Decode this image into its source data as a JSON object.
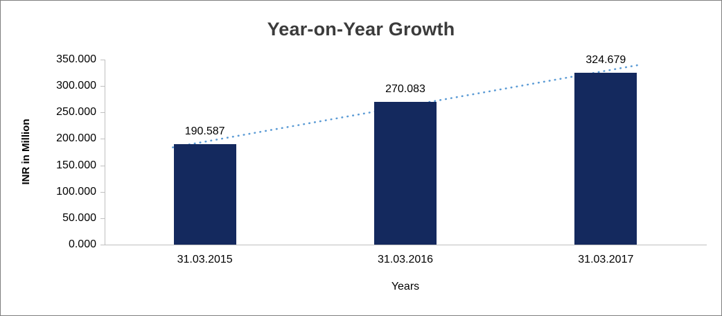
{
  "chart_data": {
    "type": "bar",
    "title": "Year-on-Year Growth",
    "xlabel": "Years",
    "ylabel": "INR in Million",
    "categories": [
      "31.03.2015",
      "31.03.2016",
      "31.03.2017"
    ],
    "values": [
      190.587,
      270.083,
      324.679
    ],
    "value_labels": [
      "190.587",
      "270.083",
      "324.679"
    ],
    "ylim": [
      0,
      350
    ],
    "ytick_step": 50,
    "ytick_labels": [
      "0.000",
      "50.000",
      "100.000",
      "150.000",
      "200.000",
      "250.000",
      "300.000",
      "350.000"
    ],
    "grid": false,
    "legend": "none",
    "bar_color": "#14295e",
    "trendline": {
      "style": "dotted",
      "color": "#5b9bd5"
    },
    "axis_color": "#bfbfbf",
    "title_color": "#3b3b3b"
  }
}
